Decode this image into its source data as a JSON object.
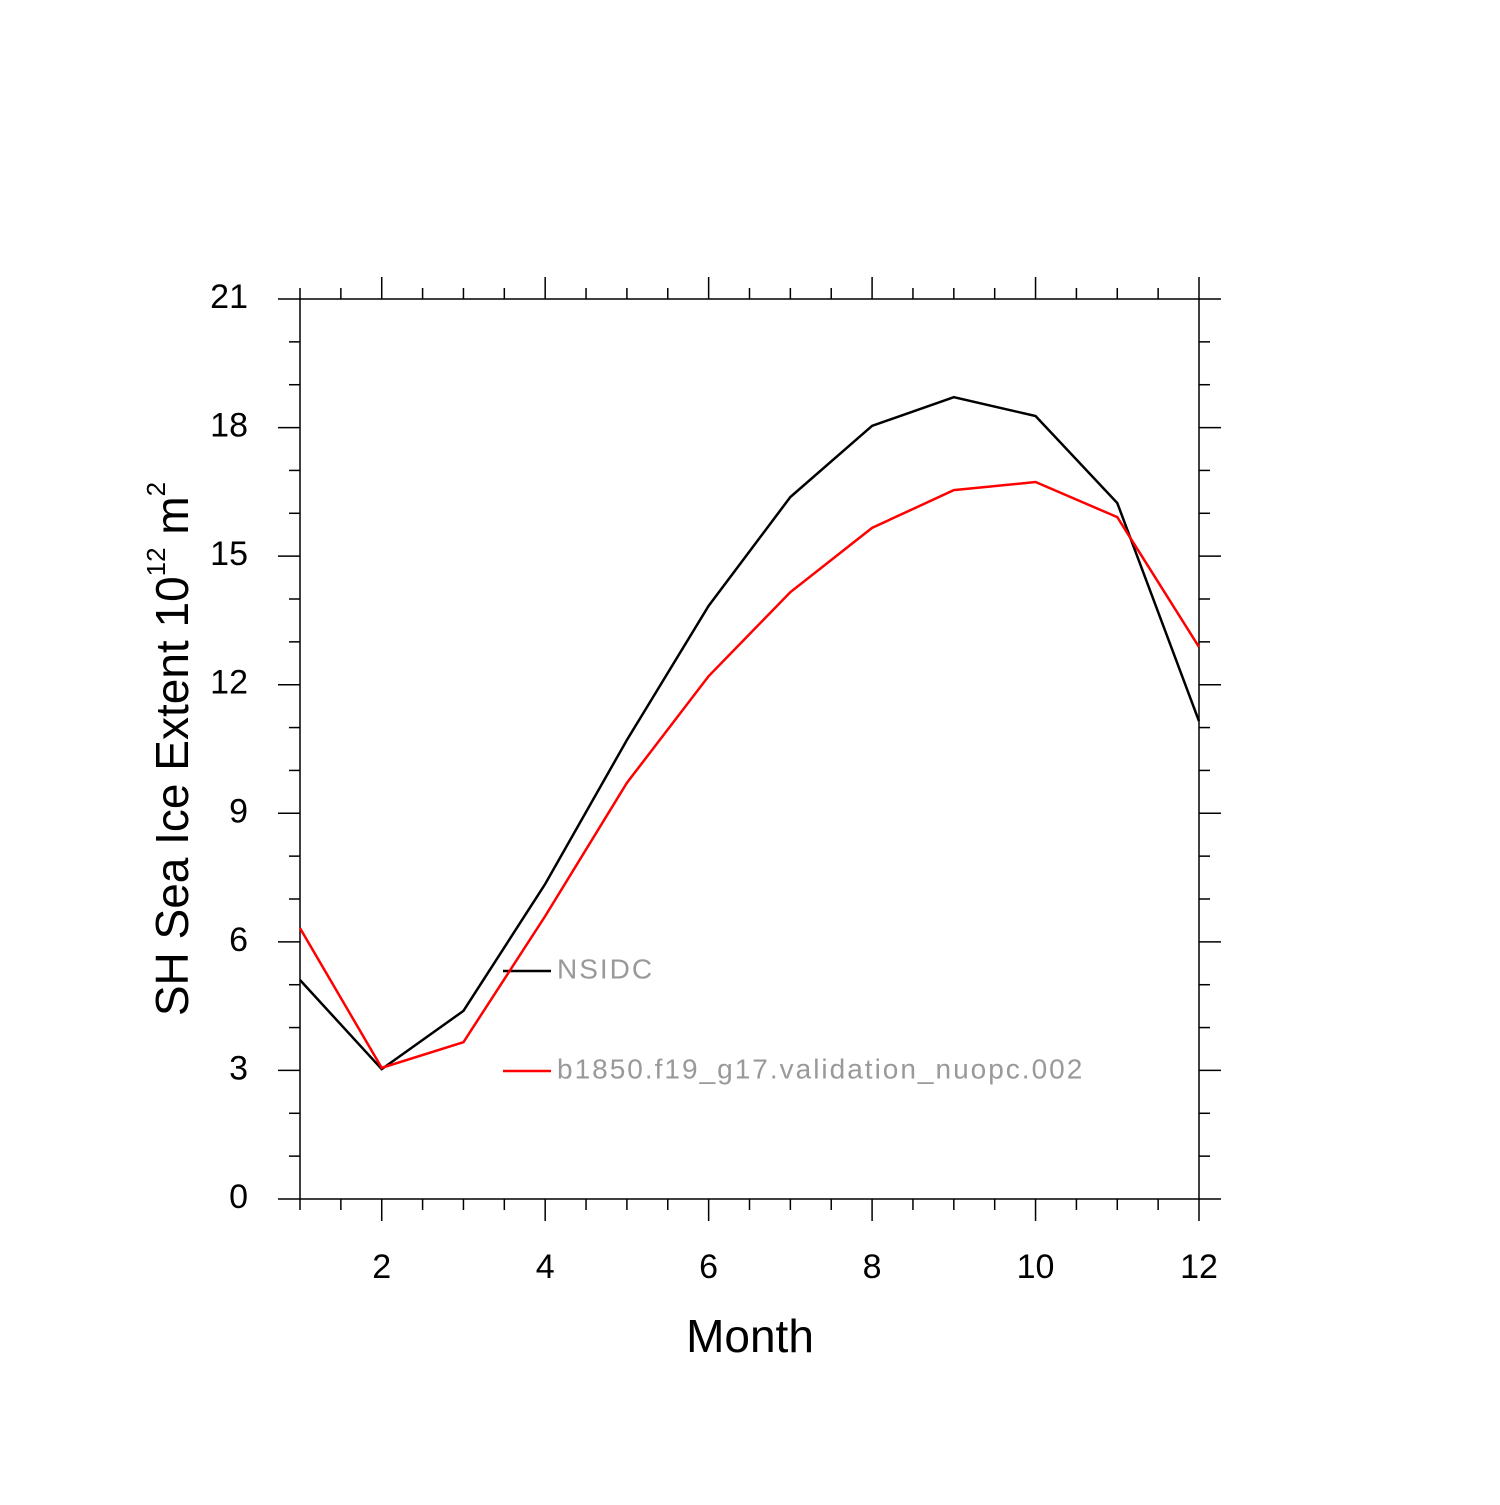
{
  "chart_data": {
    "type": "line",
    "x_label": "Month",
    "y_label_parts": [
      "SH Sea Ice Extent 10",
      "12",
      " m",
      "2"
    ],
    "x": [
      1,
      2,
      3,
      4,
      5,
      6,
      7,
      8,
      9,
      10,
      11,
      12
    ],
    "series": [
      {
        "name": "NSIDC",
        "color": "#000000",
        "values": [
          5.11,
          3.03,
          4.39,
          7.35,
          10.71,
          13.84,
          16.38,
          18.04,
          18.71,
          18.27,
          16.24,
          11.15
        ]
      },
      {
        "name": "b1850.f19_g17.validation_nuopc.002",
        "color": "#ff0000",
        "values": [
          6.32,
          3.06,
          3.66,
          6.6,
          9.71,
          12.2,
          14.16,
          15.66,
          16.54,
          16.73,
          15.91,
          12.88
        ]
      }
    ],
    "xlim": [
      1,
      12
    ],
    "xticks": [
      2,
      4,
      6,
      8,
      10,
      12
    ],
    "xminorticks": [
      1,
      1.5,
      2.5,
      3,
      3.5,
      4.5,
      5,
      5.5,
      6.5,
      7,
      7.5,
      8.5,
      9,
      9.5,
      10.5,
      11,
      11.5
    ],
    "ylim": [
      0,
      21
    ],
    "yticks": [
      0,
      3,
      6,
      9,
      12,
      15,
      18,
      21
    ],
    "yminorticks": [
      1,
      2,
      4,
      5,
      7,
      8,
      10,
      11,
      13,
      14,
      16,
      17,
      19,
      20
    ],
    "legend_text_color": "#999999"
  }
}
